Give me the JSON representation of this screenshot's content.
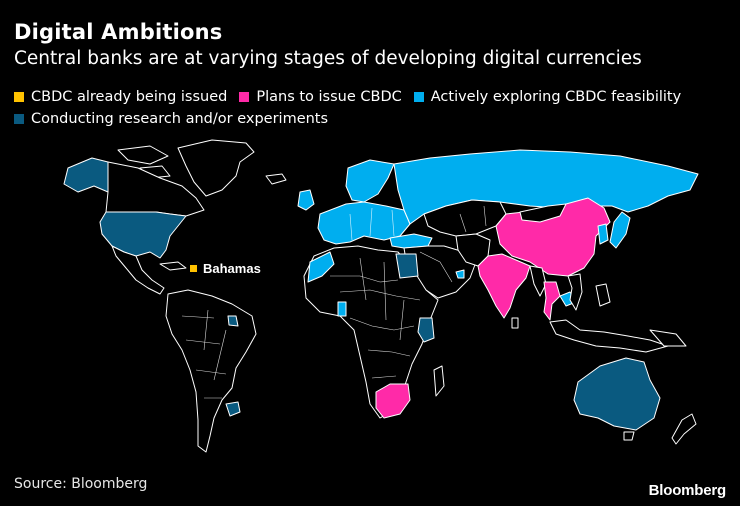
{
  "title": "Digital Ambitions",
  "subtitle": "Central banks are at varying stages of developing digital currencies",
  "legend": [
    {
      "label": "CBDC already being issued",
      "color": "#ffc200"
    },
    {
      "label": "Plans to issue CBDC",
      "color": "#ff2aa8"
    },
    {
      "label": "Actively exploring CBDC feasibility",
      "color": "#00aeef"
    },
    {
      "label": "Conducting research and/or experiments",
      "color": "#0a5a80"
    }
  ],
  "map": {
    "annotation_label": "Bahamas",
    "land_color": "#000000",
    "border_color": "#ffffff",
    "highlighted_regions": {
      "issued": [
        "Bahamas"
      ],
      "plans": [
        "China",
        "India",
        "Thailand",
        "South Africa"
      ],
      "exploring": [
        "Russia",
        "Europe",
        "Scandinavia",
        "Morocco",
        "Turkey",
        "Japan",
        "South Korea",
        "Cambodia",
        "UAE"
      ],
      "research": [
        "United States",
        "Alaska",
        "Australia",
        "Egypt",
        "Kenya",
        "Ghana",
        "Uruguay",
        "Suriname"
      ]
    }
  },
  "source": "Source: Bloomberg",
  "brand": "Bloomberg"
}
